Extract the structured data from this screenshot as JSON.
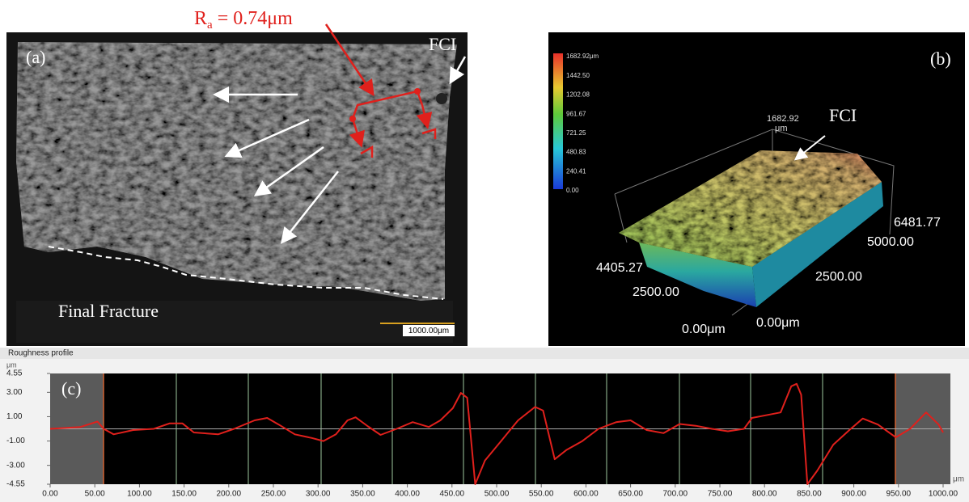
{
  "panel_a": {
    "label": "(a)",
    "ra": {
      "symbol": "R",
      "sub": "a",
      "rest": " = 0.74μm"
    },
    "fci": "FCI",
    "final_fracture": "Final Fracture",
    "scale_bar": "1000.00μm"
  },
  "panel_b": {
    "label": "(b)",
    "colorbar": [
      "1682.92μm",
      "1442.50",
      "1202.08",
      "961.67",
      "721.25",
      "480.83",
      "240.41",
      "0.00"
    ],
    "z_max": "1682.92",
    "z_unit": "μm",
    "fci": "FCI",
    "y_max": "6481.77",
    "y_mid1": "5000.00",
    "y_mid2": "2500.00",
    "x_max": "4405.27",
    "x_mid": "2500.00",
    "x_zero": "0.00μm",
    "y_zero": "0.00μm"
  },
  "chart_data": {
    "type": "line",
    "title": "Roughness profile",
    "label": "(c)",
    "y_unit": "μm",
    "x_unit": "μm",
    "xlim": [
      0,
      1000
    ],
    "ylim": [
      -4.55,
      4.55
    ],
    "yticks": [
      4.55,
      {
        "value": 3,
        "label": "3.00"
      },
      {
        "value": 1,
        "label": "1.00"
      },
      {
        "value": -1,
        "label": "-1.00"
      },
      {
        "value": -3,
        "label": "-3.00"
      },
      -4.55
    ],
    "xticks": [
      {
        "value": 0,
        "label": "0.00"
      },
      {
        "value": 50,
        "label": "50.00"
      },
      {
        "value": 100,
        "label": "100.00"
      },
      {
        "value": 150,
        "label": "150.00"
      },
      {
        "value": 200,
        "label": "200.00"
      },
      {
        "value": 250,
        "label": "250.00"
      },
      {
        "value": 300,
        "label": "300.00"
      },
      {
        "value": 350,
        "label": "350.00"
      },
      {
        "value": 400,
        "label": "400.00"
      },
      {
        "value": 450,
        "label": "450.00"
      },
      {
        "value": 500,
        "label": "500.00"
      },
      {
        "value": 550,
        "label": "550.00"
      },
      {
        "value": 600,
        "label": "600.00"
      },
      {
        "value": 650,
        "label": "650.00"
      },
      {
        "value": 700,
        "label": "700.00"
      },
      {
        "value": 750,
        "label": "750.00"
      },
      {
        "value": 800,
        "label": "800.00"
      },
      {
        "value": 850,
        "label": "850.00"
      },
      {
        "value": 900,
        "label": "900.00"
      },
      {
        "value": 950,
        "label": "950.00"
      },
      {
        "value": 1000,
        "label": "1000.00"
      }
    ],
    "color": "#e0201c",
    "x": [
      0,
      34,
      53,
      60,
      71,
      93,
      116,
      134,
      148,
      161,
      188,
      206,
      229,
      243,
      256,
      274,
      293,
      306,
      320,
      333,
      342,
      356,
      370,
      388,
      406,
      424,
      437,
      451,
      460,
      467,
      476,
      487,
      505,
      524,
      543,
      552,
      565,
      578,
      596,
      614,
      634,
      650,
      668,
      687,
      705,
      723,
      741,
      759,
      777,
      786,
      804,
      818,
      830,
      836,
      841,
      848,
      859,
      877,
      895,
      910,
      927,
      947,
      963,
      981,
      995,
      1000
    ],
    "values": [
      0,
      0.15,
      0.6,
      0,
      -0.45,
      -0.1,
      0,
      0.45,
      0.45,
      -0.3,
      -0.45,
      0,
      0.7,
      0.9,
      0.35,
      -0.45,
      -0.75,
      -1.0,
      -0.45,
      0.7,
      0.95,
      0.2,
      -0.5,
      0,
      0.55,
      0.15,
      0.7,
      1.7,
      2.95,
      2.55,
      -4.55,
      -2.6,
      -1.0,
      0.7,
      1.8,
      1.5,
      -2.5,
      -1.75,
      -1.0,
      0,
      0.55,
      0.7,
      -0.1,
      -0.35,
      0.4,
      0.25,
      0,
      -0.2,
      0,
      0.9,
      1.15,
      1.35,
      3.5,
      3.7,
      2.8,
      -4.55,
      -3.45,
      -1.3,
      -0.1,
      0.85,
      0.35,
      -0.7,
      0,
      1.35,
      0.35,
      -0.3
    ]
  }
}
